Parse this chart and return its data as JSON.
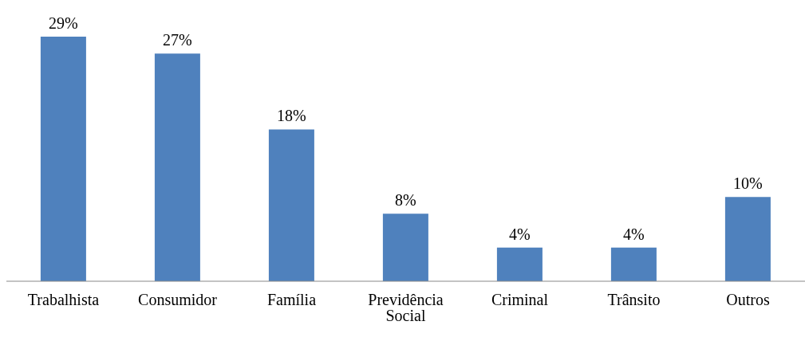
{
  "chart_data": {
    "type": "bar",
    "categories": [
      "Trabalhista",
      "Consumidor",
      "Família",
      "Previdência Social",
      "Criminal",
      "Trânsito",
      "Outros"
    ],
    "values": [
      29,
      27,
      18,
      8,
      4,
      4,
      10
    ],
    "color": "#4f81bd",
    "data_labels": true,
    "value_labels": [
      "29%",
      "27%",
      "18%",
      "8%",
      "4%",
      "4%",
      "10%"
    ]
  }
}
